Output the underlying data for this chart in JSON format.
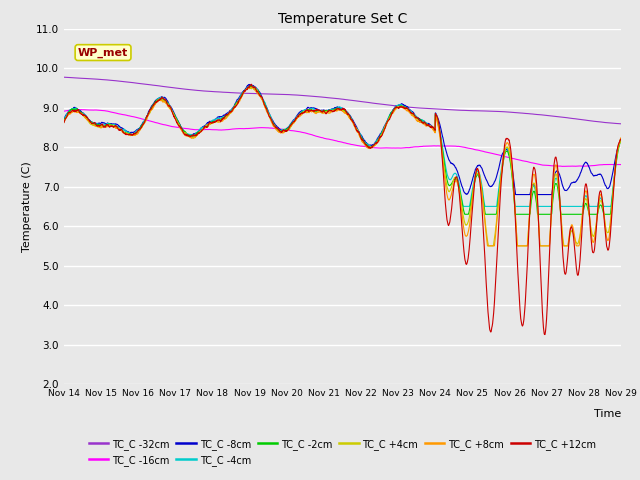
{
  "title": "Temperature Set C",
  "xlabel": "Time",
  "ylabel": "Temperature (C)",
  "ylim": [
    2.0,
    11.0
  ],
  "yticks": [
    2.0,
    3.0,
    4.0,
    5.0,
    6.0,
    7.0,
    8.0,
    9.0,
    10.0,
    11.0
  ],
  "xtick_labels": [
    "Nov 14",
    "Nov 15",
    "Nov 16",
    "Nov 17",
    "Nov 18",
    "Nov 19",
    "Nov 20",
    "Nov 21",
    "Nov 22",
    "Nov 23",
    "Nov 24",
    "Nov 25",
    "Nov 26",
    "Nov 27",
    "Nov 28",
    "Nov 29"
  ],
  "series": [
    {
      "label": "TC_C -32cm",
      "color": "#9933CC"
    },
    {
      "label": "TC_C -16cm",
      "color": "#FF00FF"
    },
    {
      "label": "TC_C -8cm",
      "color": "#0000CC"
    },
    {
      "label": "TC_C -4cm",
      "color": "#00CCCC"
    },
    {
      "label": "TC_C -2cm",
      "color": "#00CC00"
    },
    {
      "label": "TC_C +4cm",
      "color": "#CCCC00"
    },
    {
      "label": "TC_C +8cm",
      "color": "#FF9900"
    },
    {
      "label": "TC_C +12cm",
      "color": "#CC0000"
    }
  ],
  "wp_met_box_facecolor": "#FFFFCC",
  "wp_met_box_edgecolor": "#CCCC00",
  "wp_met_text_color": "#990000",
  "fig_facecolor": "#E8E8E8"
}
